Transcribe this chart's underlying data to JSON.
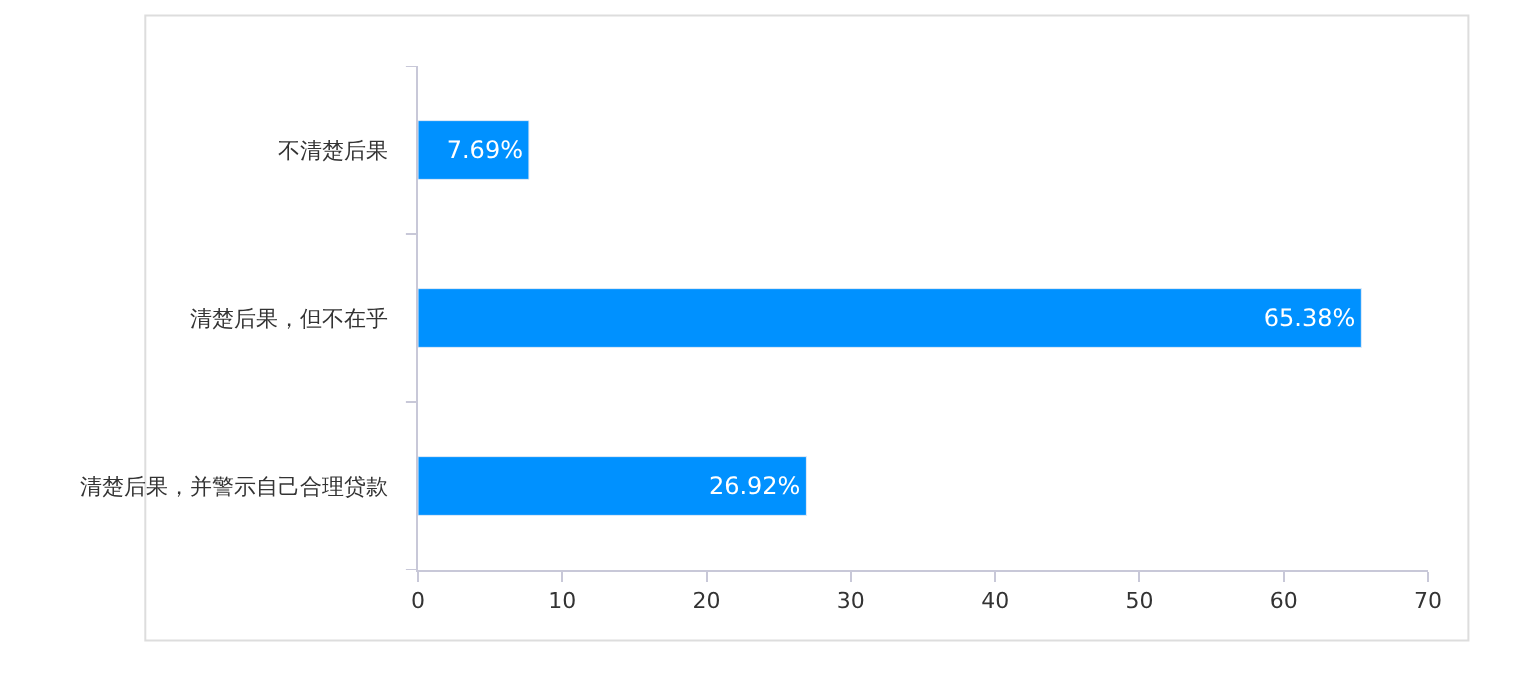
{
  "chart_data": {
    "type": "bar",
    "orientation": "horizontal",
    "categories": [
      "不清楚后果",
      "清楚后果，但不在乎",
      "清楚后果，并警示自己合理贷款"
    ],
    "values": [
      7.69,
      65.38,
      26.92
    ],
    "value_labels": [
      "7.69%",
      "65.38%",
      "26.92%"
    ],
    "color": "#0091ff",
    "xlim": [
      0,
      70
    ],
    "xticks": [
      0,
      10,
      20,
      30,
      40,
      50,
      60,
      70
    ],
    "grid": false,
    "legend": false
  }
}
